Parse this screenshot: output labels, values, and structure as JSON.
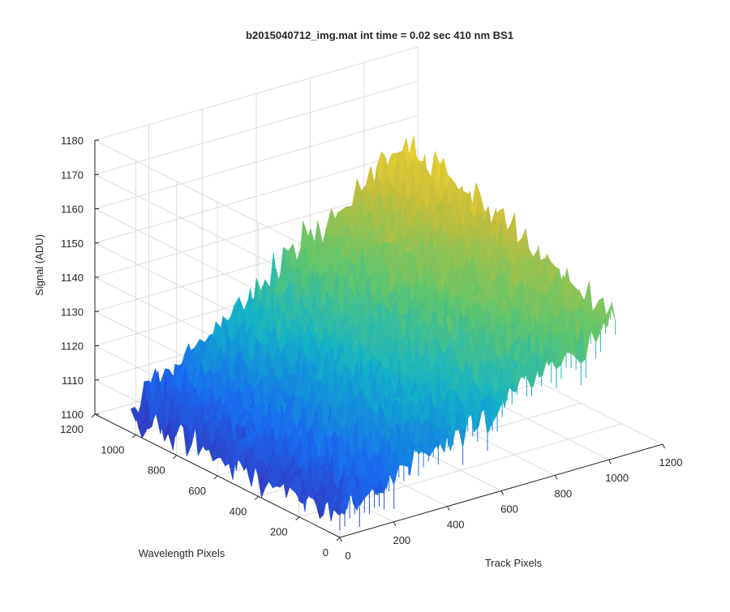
{
  "chart_data": {
    "type": "surface",
    "title": "b2015040712_img.mat int time = 0.02 sec  410 nm BS1",
    "xlabel": "Track Pixels",
    "ylabel": "Wavelength Pixels",
    "zlabel": "Signal (ADU)",
    "xlim": [
      0,
      1200
    ],
    "ylim": [
      0,
      1200
    ],
    "zlim": [
      1100,
      1180
    ],
    "xticks": [
      "0",
      "200",
      "400",
      "600",
      "800",
      "1000",
      "1200"
    ],
    "yticks": [
      "0",
      "200",
      "400",
      "600",
      "800",
      "1000",
      "1200"
    ],
    "zticks": [
      "1100",
      "1110",
      "1120",
      "1130",
      "1140",
      "1150",
      "1160",
      "1170",
      "1180"
    ],
    "grid": true,
    "colormap": "parula",
    "colormap_colors": [
      "#3e26a8",
      "#1a67f0",
      "#12b2c9",
      "#64c76a",
      "#c4bd3c",
      "#f9d62a"
    ],
    "surface_extent": {
      "track_pixels": [
        0,
        1024
      ],
      "wavelength_pixels": [
        0,
        1024
      ]
    },
    "surface_corners": [
      {
        "track": 0,
        "wavelength": 0,
        "signal": 1107
      },
      {
        "track": 0,
        "wavelength": 1024,
        "signal": 1106
      },
      {
        "track": 1024,
        "wavelength": 0,
        "signal": 1141
      },
      {
        "track": 1024,
        "wavelength": 1024,
        "signal": 1160
      }
    ],
    "noise_amplitude": 5
  }
}
